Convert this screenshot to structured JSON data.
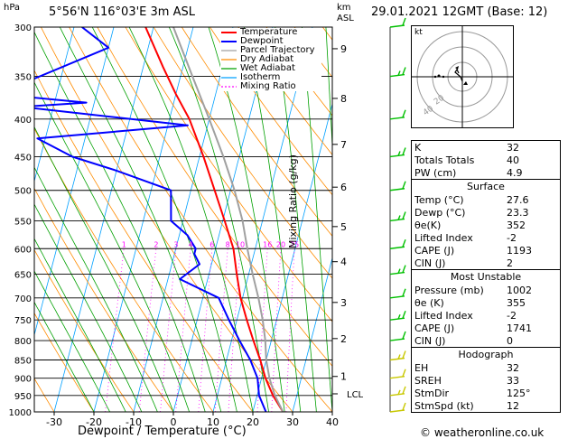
{
  "header": {
    "location": "5°56'N  116°03'E  3m  ASL",
    "datetime": "29.01.2021  12GMT  (Base: 12)",
    "hpa_label": "hPa",
    "km_label": "km",
    "asl_label": "ASL"
  },
  "chart_data": {
    "type": "line",
    "xlabel": "Dewpoint / Temperature (°C)",
    "ylabel": "Mixing Ratio (g/kg)",
    "xlim": [
      -35,
      40
    ],
    "ylim": [
      1000,
      300
    ],
    "y_scale": "log",
    "x_ticks": [
      -30,
      -20,
      -10,
      0,
      10,
      20,
      30,
      40
    ],
    "pressure_ticks": [
      300,
      350,
      400,
      450,
      500,
      550,
      600,
      650,
      700,
      750,
      800,
      850,
      900,
      950,
      1000
    ],
    "height_ticks": [
      {
        "label": "9",
        "p": 321
      },
      {
        "label": "8",
        "p": 375
      },
      {
        "label": "7",
        "p": 433
      },
      {
        "label": "6",
        "p": 495
      },
      {
        "label": "5",
        "p": 560
      },
      {
        "label": "4",
        "p": 625
      },
      {
        "label": "3",
        "p": 710
      },
      {
        "label": "2",
        "p": 795
      },
      {
        "label": "1",
        "p": 895
      }
    ],
    "lcl": {
      "label": "LCL",
      "p": 945
    },
    "mixing_ratio_labels": [
      "1",
      "2",
      "3",
      "4",
      "6",
      "8",
      "10",
      "16",
      "20",
      "25"
    ],
    "mixing_ratio_values": [
      1,
      2,
      3,
      4,
      6,
      8,
      10,
      16,
      20,
      25
    ],
    "legend": [
      "Temperature",
      "Dewpoint",
      "Parcel Trajectory",
      "Dry Adiabat",
      "Wet Adiabat",
      "Isotherm",
      "Mixing Ratio"
    ],
    "legend_placement": "top-center",
    "series": [
      {
        "name": "Temperature",
        "color": "#ff0000",
        "points": [
          [
            27.6,
            1000
          ],
          [
            24,
            950
          ],
          [
            21,
            900
          ],
          [
            18.5,
            850
          ],
          [
            15.5,
            800
          ],
          [
            12.5,
            750
          ],
          [
            9.5,
            700
          ],
          [
            7,
            650
          ],
          [
            4.5,
            600
          ],
          [
            0.5,
            550
          ],
          [
            -4,
            500
          ],
          [
            -9,
            450
          ],
          [
            -15,
            400
          ],
          [
            -20,
            370
          ],
          [
            -25,
            340
          ],
          [
            -32,
            300
          ]
        ]
      },
      {
        "name": "Dewpoint",
        "color": "#0000ff",
        "points": [
          [
            23.3,
            1000
          ],
          [
            20.5,
            950
          ],
          [
            19,
            900
          ],
          [
            16,
            850
          ],
          [
            12,
            800
          ],
          [
            8,
            750
          ],
          [
            4,
            700
          ],
          [
            -7,
            660
          ],
          [
            -3,
            630
          ],
          [
            -5,
            610
          ],
          [
            -5,
            600
          ],
          [
            -8,
            575
          ],
          [
            -13,
            550
          ],
          [
            -15,
            500
          ],
          [
            -30,
            470
          ],
          [
            -42,
            450
          ],
          [
            -52,
            425
          ],
          [
            -15,
            408
          ],
          [
            -58,
            385
          ],
          [
            -42,
            380
          ],
          [
            -65,
            370
          ],
          [
            -40,
            320
          ],
          [
            -48,
            300
          ]
        ]
      },
      {
        "name": "Parcel Trajectory",
        "color": "#a0a0a0",
        "points": [
          [
            27.6,
            1000
          ],
          [
            24.5,
            950
          ],
          [
            23,
            920
          ],
          [
            22,
            900
          ],
          [
            20,
            850
          ],
          [
            18.5,
            800
          ],
          [
            16.5,
            750
          ],
          [
            14,
            700
          ],
          [
            11,
            650
          ],
          [
            8,
            600
          ],
          [
            5,
            550
          ],
          [
            1,
            500
          ],
          [
            -4,
            450
          ],
          [
            -10,
            400
          ],
          [
            -17,
            350
          ],
          [
            -25,
            300
          ]
        ]
      }
    ]
  },
  "hodograph": {
    "unit_label": "kt",
    "ring_labels": [
      "40",
      "20"
    ]
  },
  "indices": [
    {
      "label": "K",
      "value": "32"
    },
    {
      "label": "Totals Totals",
      "value": "40"
    },
    {
      "label": "PW (cm)",
      "value": "4.9"
    }
  ],
  "surface": {
    "title": "Surface",
    "rows": [
      {
        "label": "Temp (°C)",
        "value": "27.6"
      },
      {
        "label": "Dewp (°C)",
        "value": "23.3"
      },
      {
        "label": "θe(K)",
        "value": "352"
      },
      {
        "label": "Lifted Index",
        "value": "-2"
      },
      {
        "label": "CAPE (J)",
        "value": "1193"
      },
      {
        "label": "CIN (J)",
        "value": "2"
      }
    ]
  },
  "unstable": {
    "title": "Most Unstable",
    "rows": [
      {
        "label": "Pressure (mb)",
        "value": "1002"
      },
      {
        "label": "θe (K)",
        "value": "355"
      },
      {
        "label": "Lifted Index",
        "value": "-2"
      },
      {
        "label": "CAPE (J)",
        "value": "1741"
      },
      {
        "label": "CIN (J)",
        "value": "0"
      }
    ]
  },
  "hodo_table": {
    "title": "Hodograph",
    "rows": [
      {
        "label": "EH",
        "value": "32"
      },
      {
        "label": "SREH",
        "value": "33"
      },
      {
        "label": "StmDir",
        "value": "125°"
      },
      {
        "label": "StmSpd (kt)",
        "value": "12"
      }
    ]
  },
  "footer": {
    "copyright": "© weatheronline.co.uk"
  },
  "colors": {
    "temperature": "#ff0000",
    "dewpoint": "#0000ff",
    "parcel": "#a0a0a0",
    "dry_adiabat": "#ff8c00",
    "wet_adiabat": "#00a000",
    "isotherm": "#00a0ff",
    "mixing_ratio": "#ff00ff",
    "wind_barb": "#00c000"
  }
}
